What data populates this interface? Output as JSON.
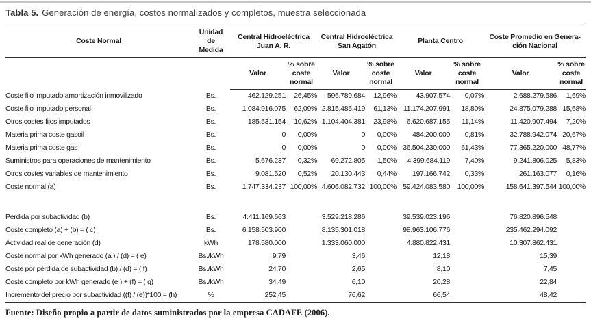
{
  "title": {
    "prefix": "Tabla 5.",
    "text": "Generación de energía, costos normalizados y completos, muestra seleccionada"
  },
  "table": {
    "col_headers": {
      "label": "Coste Normal",
      "unit": "Unidad\nde\nMedida",
      "groups": [
        {
          "name": "Central Hidroeléctrica\nJuan A. R."
        },
        {
          "name": "Central Hidroeléctrica\nSan Agatón"
        },
        {
          "name": "Planta Centro"
        },
        {
          "name": "Coste Promedio en Genera-\nción Nacional"
        }
      ],
      "valor": "Valor",
      "pct": "% sobre\ncoste\nnormal"
    },
    "sections": [
      {
        "rows": [
          {
            "label": "Coste fijo imputado amortización inmovilizado",
            "unit": "Bs.",
            "values": [
              "462.129.251",
              "26,45%",
              "596.789.684",
              "12,96%",
              "43.907.574",
              "0,07%",
              "2.688.279.586",
              "1,69%"
            ]
          },
          {
            "label": "Coste fijo imputado personal",
            "unit": "Bs.",
            "values": [
              "1.084.916.075",
              "62,09%",
              "2.815.485.419",
              "61,13%",
              "11.174.207.991",
              "18,80%",
              "24.875.079.288",
              "15,68%"
            ]
          },
          {
            "label": "Otros costes fijos imputados",
            "unit": "Bs.",
            "values": [
              "185.531.154",
              "10,62%",
              "1.104.404.381",
              "23,98%",
              "6.620.687.155",
              "11,14%",
              "11.420.907.494",
              "7,20%"
            ]
          },
          {
            "label": "Materia prima coste gasoil",
            "unit": "Bs.",
            "values": [
              "0",
              "0,00%",
              "0",
              "0,00%",
              "484.200.000",
              "0,81%",
              "32.788.942.074",
              "20,67%"
            ]
          },
          {
            "label": "Materia prima coste gas",
            "unit": "Bs.",
            "values": [
              "0",
              "0,00%",
              "0",
              "0,00%",
              "36.504.230.000",
              "61,43%",
              "77.365.220.000",
              "48,77%"
            ]
          },
          {
            "label": "Suministros para operaciones de mantenimiento",
            "unit": "Bs.",
            "values": [
              "5.676.237",
              "0,32%",
              "69.272.805",
              "1,50%",
              "4.399.684.119",
              "7,40%",
              "9.241.806.025",
              "5,83%"
            ]
          },
          {
            "label": "Otros costes variables de mantenimiento",
            "unit": "Bs.",
            "values": [
              "9.081.520",
              "0,52%",
              "20.130.443",
              "0,44%",
              "197.166.742",
              "0,33%",
              "261.163.077",
              "0,16%"
            ]
          },
          {
            "label": "Coste normal (a)",
            "unit": "Bs.",
            "values": [
              "1.747.334.237",
              "100,00%",
              "4.606.082.732",
              "100,00%",
              "59.424.083.580",
              "100,00%",
              "158.641.397.544",
              "100,00%"
            ]
          }
        ]
      },
      {
        "rows": [
          {
            "label": "Pérdida por subactividad (b)",
            "unit": "Bs.",
            "values": [
              "4.411.169.663",
              "",
              "3.529.218.286",
              "",
              "39.539.023.196",
              "",
              "76.820.896.548",
              ""
            ]
          },
          {
            "label": "Coste completo (a) + (b) = ( c)",
            "unit": "Bs.",
            "values": [
              "6.158.503.900",
              "",
              "8.135.301.018",
              "",
              "98.963.106.776",
              "",
              "235.462.294.092",
              ""
            ]
          },
          {
            "label": "Actividad real de generación (d)",
            "unit": "kWh",
            "values": [
              "178.580.000",
              "",
              "1.333.060.000",
              "",
              "4.880.822.431",
              "",
              "10.307.862.431",
              ""
            ]
          },
          {
            "label": "Coste normal por kWh generado (a ) / (d) = ( e)",
            "unit": "Bs./kWh",
            "values": [
              "9,79",
              "",
              "3,46",
              "",
              "12,18",
              "",
              "15,39",
              ""
            ]
          },
          {
            "label": "Coste por pérdida de subactividad (b) / (d) = ( f)",
            "unit": "Bs./kWh",
            "values": [
              "24,70",
              "",
              "2,65",
              "",
              "8,10",
              "",
              "7,45",
              ""
            ]
          },
          {
            "label": "Coste completo por kWh generado (e ) + (f) = ( g)",
            "unit": "Bs./kWh",
            "values": [
              "34,49",
              "",
              "6,10",
              "",
              "20,28",
              "",
              "22,84",
              ""
            ]
          },
          {
            "label": "Incremento del precio por subactividad ((f) / (e))*100 = (h)",
            "unit": "%",
            "values": [
              "252,45",
              "",
              "76,62",
              "",
              "66,54",
              "",
              "48,42",
              ""
            ]
          }
        ]
      }
    ]
  },
  "footer": "Fuente: Diseño propio a partir de datos suministrados por la empresa CADAFE (2006)."
}
